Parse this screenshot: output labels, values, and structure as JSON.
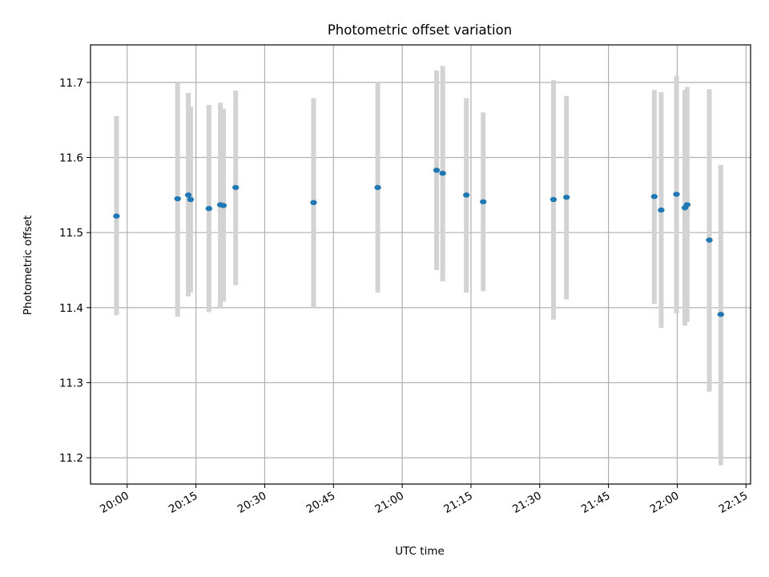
{
  "chart_data": {
    "type": "scatter",
    "title": "Photometric offset variation",
    "xlabel": "UTC time",
    "ylabel": "Photometric offset",
    "x_axis_type": "time",
    "xlim": [
      "19:52",
      "22:16"
    ],
    "ylim": [
      11.165,
      11.75
    ],
    "grid": true,
    "x_ticks": [
      "20:00",
      "20:15",
      "20:30",
      "20:45",
      "21:00",
      "21:15",
      "21:30",
      "21:45",
      "22:00",
      "22:15"
    ],
    "y_ticks": [
      11.2,
      11.3,
      11.4,
      11.5,
      11.6,
      11.7
    ],
    "colors": {
      "points": "#1f77b4",
      "errorbars": "#d3d3d3",
      "grid": "#b0b0b0"
    },
    "points": [
      {
        "x": "19:57:40",
        "y": 11.522,
        "ylow": 11.39,
        "yhigh": 11.655
      },
      {
        "x": "20:11:00",
        "y": 11.545,
        "ylow": 11.388,
        "yhigh": 11.7
      },
      {
        "x": "20:13:20",
        "y": 11.55,
        "ylow": 11.415,
        "yhigh": 11.686
      },
      {
        "x": "20:13:50",
        "y": 11.544,
        "ylow": 11.42,
        "yhigh": 11.668
      },
      {
        "x": "20:17:50",
        "y": 11.532,
        "ylow": 11.394,
        "yhigh": 11.67
      },
      {
        "x": "20:20:20",
        "y": 11.537,
        "ylow": 11.4,
        "yhigh": 11.673
      },
      {
        "x": "20:21:00",
        "y": 11.536,
        "ylow": 11.408,
        "yhigh": 11.665
      },
      {
        "x": "20:23:40",
        "y": 11.56,
        "ylow": 11.43,
        "yhigh": 11.689
      },
      {
        "x": "20:40:40",
        "y": 11.54,
        "ylow": 11.4,
        "yhigh": 11.679
      },
      {
        "x": "20:54:40",
        "y": 11.56,
        "ylow": 11.42,
        "yhigh": 11.7
      },
      {
        "x": "21:07:30",
        "y": 11.583,
        "ylow": 11.45,
        "yhigh": 11.716
      },
      {
        "x": "21:08:50",
        "y": 11.579,
        "ylow": 11.435,
        "yhigh": 11.722
      },
      {
        "x": "21:14:00",
        "y": 11.55,
        "ylow": 11.42,
        "yhigh": 11.679
      },
      {
        "x": "21:17:40",
        "y": 11.541,
        "ylow": 11.422,
        "yhigh": 11.66
      },
      {
        "x": "21:33:00",
        "y": 11.544,
        "ylow": 11.384,
        "yhigh": 11.703
      },
      {
        "x": "21:35:50",
        "y": 11.547,
        "ylow": 11.411,
        "yhigh": 11.682
      },
      {
        "x": "21:55:00",
        "y": 11.548,
        "ylow": 11.405,
        "yhigh": 11.69
      },
      {
        "x": "21:56:30",
        "y": 11.53,
        "ylow": 11.373,
        "yhigh": 11.687
      },
      {
        "x": "21:59:50",
        "y": 11.551,
        "ylow": 11.392,
        "yhigh": 11.709
      },
      {
        "x": "22:01:40",
        "y": 11.533,
        "ylow": 11.376,
        "yhigh": 11.69
      },
      {
        "x": "22:02:10",
        "y": 11.537,
        "ylow": 11.381,
        "yhigh": 11.694
      },
      {
        "x": "22:07:00",
        "y": 11.49,
        "ylow": 11.288,
        "yhigh": 11.691
      },
      {
        "x": "22:09:30",
        "y": 11.391,
        "ylow": 11.19,
        "yhigh": 11.59
      }
    ]
  }
}
